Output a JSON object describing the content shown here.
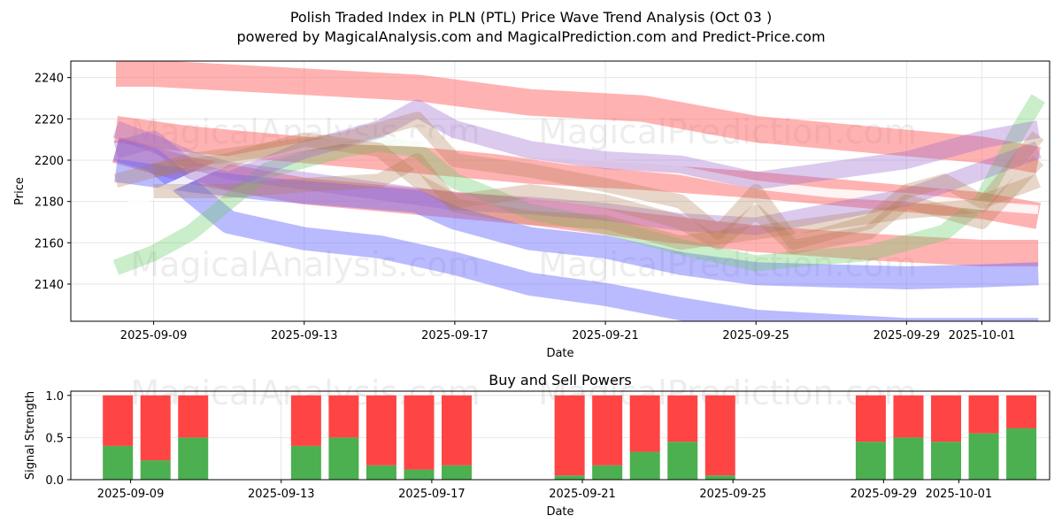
{
  "figure": {
    "title_line1": "Polish Traded Index in PLN (PTL) Price Wave Trend Analysis (Oct 03 )",
    "title_line2": "powered by MagicalAnalysis.com and MagicalPrediction.com and Predict-Price.com",
    "watermarks": [
      "MagicalAnalysis.com",
      "MagicalPrediction.com"
    ]
  },
  "colors": {
    "red_band": "#ff6666",
    "blue_band": "#6666ff",
    "green_band": "#66cc66",
    "purple_band": "#9966cc",
    "brown_band": "#b07a50",
    "buy": "#4caf50",
    "sell": "#ff4444"
  },
  "chart_data": [
    {
      "type": "line",
      "title": "",
      "xlabel": "Date",
      "ylabel": "Price",
      "xlim": [
        -1.2,
        24.8
      ],
      "ylim": [
        2122,
        2248
      ],
      "x_tick_values": [
        1,
        5,
        9,
        13,
        17,
        21,
        23
      ],
      "x_tick_labels": [
        "2025-09-09",
        "2025-09-13",
        "2025-09-17",
        "2025-09-21",
        "2025-09-25",
        "2025-09-29",
        "2025-10-01"
      ],
      "y_ticks": [
        2140,
        2160,
        2180,
        2200,
        2220,
        2240
      ],
      "grid": true,
      "series": [
        {
          "name": "red-upper",
          "color": "red",
          "x": [
            0,
            1,
            3,
            5,
            8,
            11,
            14,
            17,
            20,
            23,
            24.5
          ],
          "y": [
            2242,
            2242,
            2240,
            2238,
            2235,
            2228,
            2225,
            2215,
            2210,
            2205,
            2200
          ]
        },
        {
          "name": "red-middle",
          "color": "red",
          "x": [
            0,
            2,
            5,
            8,
            11,
            14,
            17,
            20,
            23,
            24.5
          ],
          "y": [
            2215,
            2210,
            2205,
            2200,
            2195,
            2192,
            2188,
            2183,
            2178,
            2173
          ]
        },
        {
          "name": "red-lower",
          "color": "red",
          "x": [
            0,
            2,
            5,
            8,
            11,
            14,
            17,
            20,
            23,
            24.5
          ],
          "y": [
            2205,
            2195,
            2185,
            2180,
            2175,
            2168,
            2162,
            2158,
            2155,
            2155
          ]
        },
        {
          "name": "blue-lower",
          "color": "blue",
          "x": [
            0,
            1,
            2,
            3,
            5,
            7,
            9,
            11,
            13,
            15,
            17,
            19,
            21,
            24.5
          ],
          "y": [
            2205,
            2200,
            2185,
            2170,
            2162,
            2158,
            2150,
            2140,
            2135,
            2128,
            2122,
            2120,
            2118,
            2118
          ]
        },
        {
          "name": "blue-upper",
          "color": "blue",
          "x": [
            0,
            2,
            4,
            6,
            8,
            9,
            11,
            13,
            15,
            17,
            19,
            21,
            23,
            24.5
          ],
          "y": [
            2195,
            2190,
            2186,
            2183,
            2180,
            2172,
            2162,
            2158,
            2150,
            2145,
            2144,
            2143,
            2144,
            2145
          ]
        },
        {
          "name": "green",
          "color": "green",
          "x": [
            0,
            1,
            2,
            3,
            4,
            6,
            7,
            8,
            9,
            11,
            13,
            15,
            17,
            18,
            20,
            22,
            23,
            24,
            24.5
          ],
          "y": [
            2148,
            2155,
            2165,
            2180,
            2195,
            2205,
            2208,
            2205,
            2190,
            2175,
            2168,
            2158,
            2150,
            2152,
            2155,
            2165,
            2180,
            2215,
            2230
          ]
        },
        {
          "name": "white-center",
          "color": "white",
          "x": [
            0,
            3,
            6,
            9,
            12,
            15,
            17,
            19,
            21,
            23,
            24.5
          ],
          "y": [
            2175,
            2200,
            2210,
            2208,
            2200,
            2195,
            2188,
            2184,
            2182,
            2178,
            2176
          ]
        },
        {
          "name": "purple-1",
          "color": "purple",
          "x": [
            0,
            1,
            2,
            3,
            5,
            7,
            8,
            9,
            11,
            13,
            15,
            17,
            19,
            21,
            23,
            24.5
          ],
          "y": [
            2205,
            2210,
            2195,
            2190,
            2205,
            2215,
            2225,
            2215,
            2205,
            2200,
            2198,
            2190,
            2195,
            2200,
            2210,
            2215
          ]
        },
        {
          "name": "purple-2",
          "color": "purple",
          "x": [
            0,
            1,
            2,
            3,
            5,
            7,
            9,
            11,
            13,
            15,
            17,
            19,
            21,
            23,
            24.5
          ],
          "y": [
            2215,
            2208,
            2200,
            2195,
            2190,
            2185,
            2180,
            2178,
            2175,
            2170,
            2168,
            2175,
            2182,
            2195,
            2205
          ]
        },
        {
          "name": "brown-1",
          "color": "brown",
          "x": [
            0,
            2,
            4,
            6,
            7,
            8,
            9,
            11,
            13,
            15,
            16,
            17,
            18,
            20,
            21,
            22,
            23,
            24.5
          ],
          "y": [
            2190,
            2200,
            2205,
            2210,
            2215,
            2220,
            2200,
            2195,
            2188,
            2180,
            2165,
            2185,
            2160,
            2170,
            2185,
            2190,
            2180,
            2190
          ]
        },
        {
          "name": "brown-2",
          "color": "brown",
          "x": [
            1,
            3,
            5,
            7,
            8,
            9,
            11,
            13,
            15,
            16,
            17,
            18,
            20,
            21,
            22,
            23,
            24.5
          ],
          "y": [
            2195,
            2200,
            2210,
            2205,
            2190,
            2180,
            2185,
            2180,
            2170,
            2160,
            2175,
            2158,
            2165,
            2180,
            2175,
            2170,
            2200
          ]
        },
        {
          "name": "brown-3",
          "color": "brown",
          "x": [
            1,
            3,
            5,
            7,
            8,
            9,
            11,
            13,
            15,
            17,
            19,
            21,
            23,
            24.5
          ],
          "y": [
            2185,
            2185,
            2188,
            2190,
            2200,
            2178,
            2172,
            2170,
            2160,
            2165,
            2170,
            2175,
            2178,
            2212
          ]
        }
      ]
    },
    {
      "type": "bar",
      "title": "Buy and Sell Powers",
      "xlabel": "Date",
      "ylabel": "Signal Strength",
      "xlim": [
        -1.2,
        24.8
      ],
      "ylim": [
        0,
        1.05
      ],
      "x_tick_values": [
        1,
        5,
        9,
        13,
        17,
        21,
        23
      ],
      "x_tick_labels": [
        "2025-09-09",
        "2025-09-13",
        "2025-09-17",
        "2025-09-21",
        "2025-09-25",
        "2025-09-29",
        "2025-10-01"
      ],
      "y_ticks": [
        0.0,
        0.5,
        1.0
      ],
      "y_tick_labels": [
        "0.0",
        "0.5",
        "1.0"
      ],
      "grid": true,
      "x": [
        1,
        2,
        3,
        6,
        7,
        8,
        9,
        10,
        13,
        14,
        15,
        16,
        17,
        21,
        22,
        23,
        24,
        25
      ],
      "series": [
        {
          "name": "Buy",
          "color": "buy",
          "values": [
            0.4,
            0.23,
            0.5,
            0.4,
            0.5,
            0.17,
            0.12,
            0.17,
            0.05,
            0.17,
            0.33,
            0.45,
            0.05,
            0.45,
            0.5,
            0.45,
            0.55,
            0.61
          ]
        },
        {
          "name": "Sell",
          "color": "sell",
          "values": [
            0.6,
            0.77,
            0.5,
            0.6,
            0.5,
            0.83,
            0.88,
            0.83,
            0.95,
            0.83,
            0.67,
            0.55,
            0.95,
            0.55,
            0.5,
            0.55,
            0.45,
            0.39
          ]
        }
      ]
    }
  ]
}
